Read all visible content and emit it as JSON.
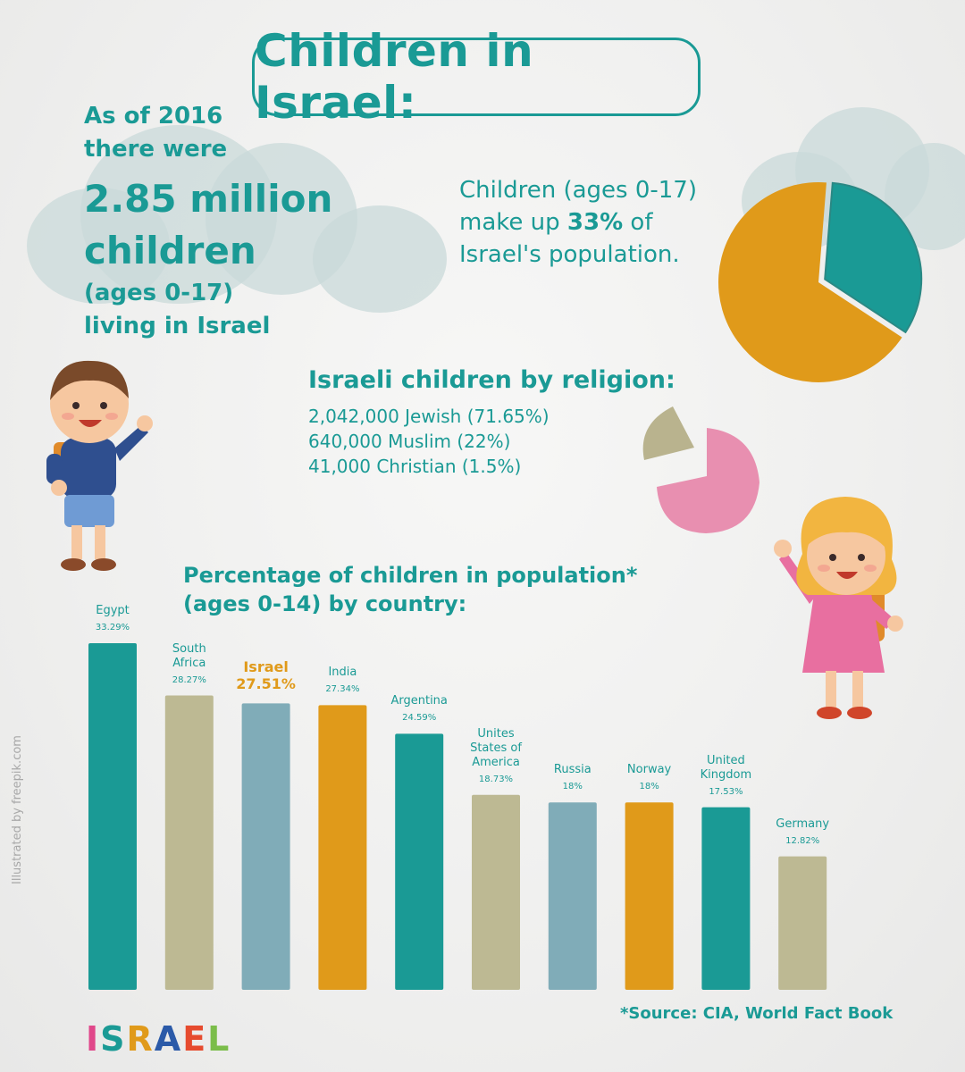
{
  "title": "Children in Israel:",
  "left_stat": {
    "line1": "As of 2016",
    "line2": "there were",
    "big1": "2.85 million",
    "big2": "children",
    "line3": "(ages 0-17)",
    "line4": "living in Israel"
  },
  "population_share": {
    "line1": "Children (ages 0-17)",
    "line2_pre": "make up ",
    "line2_bold": "33%",
    "line2_post": " of",
    "line3": "Israel's population.",
    "share_value": 33,
    "colors": {
      "children": "#1a9a95",
      "rest": "#e09a1a"
    }
  },
  "religion": {
    "title": "Israeli children by religion:",
    "items": [
      "2,042,000 Jewish (71.65%)",
      "640,000 Muslim (22%)",
      "41,000 Christian (1.5%)"
    ],
    "colors": {
      "slice_a": "#b9b38e",
      "slice_b": "#e88fb0"
    }
  },
  "chart_title": {
    "line1": "Percentage of children in population*",
    "line2": "(ages 0-14) by country:"
  },
  "chart_data": {
    "type": "bar",
    "categories": [
      [
        "Egypt"
      ],
      [
        "South",
        "Africa"
      ],
      [
        "Israel"
      ],
      [
        "India"
      ],
      [
        "Argentina"
      ],
      [
        "Unites",
        "States of",
        "America"
      ],
      [
        "Russia"
      ],
      [
        "Norway"
      ],
      [
        "United",
        "Kingdom"
      ],
      [
        "Germany"
      ]
    ],
    "value_labels": [
      "33.29%",
      "28.27%",
      "27.51%",
      "27.34%",
      "24.59%",
      "18.73%",
      "18%",
      "18%",
      "17.53%",
      "12.82%"
    ],
    "values": [
      33.29,
      28.27,
      27.51,
      27.34,
      24.59,
      18.73,
      18,
      18,
      17.53,
      12.82
    ],
    "colors": [
      "#1a9a95",
      "#bdb993",
      "#80acb8",
      "#e09a1a",
      "#1a9a95",
      "#bdb993",
      "#80acb8",
      "#e09a1a",
      "#1a9a95",
      "#bdb993"
    ],
    "highlight": "Israel",
    "highlight_color": "#e09a1a",
    "ylim": [
      0,
      33.29
    ]
  },
  "source": "*Source: CIA, World Fact Book",
  "credit": "Illustrated by freepik.com",
  "logo": {
    "text": "ISRAEL",
    "colors": [
      "#e0478a",
      "#1a9a95",
      "#e09a1a",
      "#2b5aa8",
      "#e64b2e",
      "#7bbd4a"
    ]
  }
}
